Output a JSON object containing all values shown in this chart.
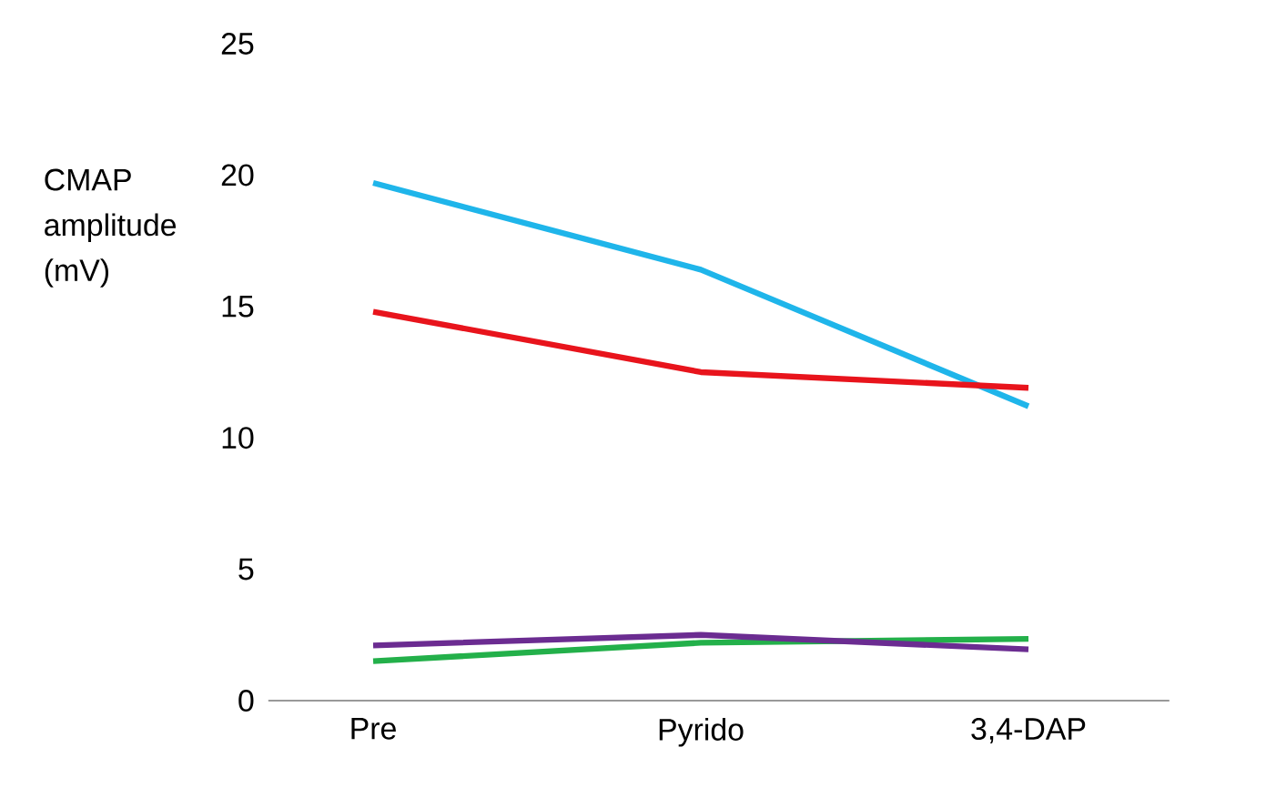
{
  "chart_data": {
    "type": "line",
    "ylabel": "CMAP amplitude (mV)",
    "categories": [
      "Pre",
      "Pyrido",
      "3,4-DAP"
    ],
    "series": [
      {
        "color": "#1fb5ea",
        "values": [
          19.7,
          16.4,
          11.2
        ]
      },
      {
        "color": "#e8141c",
        "values": [
          14.8,
          12.5,
          11.9
        ]
      },
      {
        "color": "#23b04a",
        "values": [
          1.5,
          2.2,
          2.35
        ]
      },
      {
        "color": "#6b2c91",
        "values": [
          2.1,
          2.5,
          1.95
        ]
      }
    ],
    "ylim": [
      0,
      25
    ],
    "yticks": [
      0,
      5,
      10,
      15,
      20,
      25
    ],
    "marker": "none",
    "line_style": "solid"
  }
}
